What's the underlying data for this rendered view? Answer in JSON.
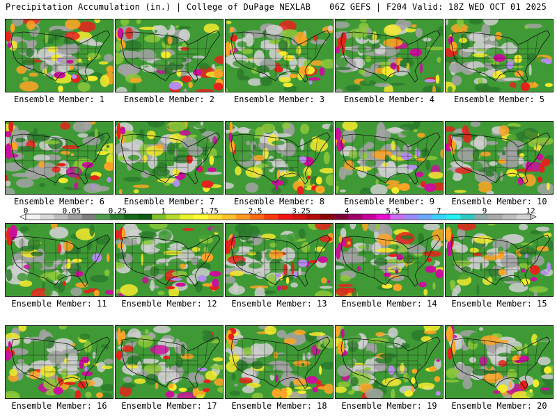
{
  "header": {
    "left": "Precipitation Accumulation (in.) | College of DuPage NEXLAB",
    "right": "06Z GEFS | F204 Valid: 18Z WED OCT 01 2025"
  },
  "members": [
    {
      "label": "Ensemble Member: 1"
    },
    {
      "label": "Ensemble Member: 2"
    },
    {
      "label": "Ensemble Member: 3"
    },
    {
      "label": "Ensemble Member: 4"
    },
    {
      "label": "Ensemble Member: 5"
    },
    {
      "label": "Ensemble Member: 6"
    },
    {
      "label": "Ensemble Member: 7"
    },
    {
      "label": "Ensemble Member: 8"
    },
    {
      "label": "Ensemble Member: 9"
    },
    {
      "label": "Ensemble Member: 10"
    },
    {
      "label": "Ensemble Member: 11"
    },
    {
      "label": "Ensemble Member: 12"
    },
    {
      "label": "Ensemble Member: 13"
    },
    {
      "label": "Ensemble Member: 14"
    },
    {
      "label": "Ensemble Member: 15"
    },
    {
      "label": "Ensemble Member: 16"
    },
    {
      "label": "Ensemble Member: 17"
    },
    {
      "label": "Ensemble Member: 18"
    },
    {
      "label": "Ensemble Member: 19"
    },
    {
      "label": "Ensemble Member: 20"
    }
  ],
  "colorbar": {
    "ticks": [
      "0",
      "0.05",
      "0.25",
      "1",
      "1.75",
      "2.5",
      "3.25",
      "4",
      "5.5",
      "7",
      "9",
      "12"
    ],
    "colors": [
      "#f2f2f2",
      "#d8d8d8",
      "#bdbdbd",
      "#9e9e9e",
      "#7d7d7d",
      "#4f9a4f",
      "#2f7d2f",
      "#16681a",
      "#0f5a14",
      "#7fbf2a",
      "#b6d92a",
      "#e7f32a",
      "#ffff33",
      "#ffe033",
      "#ffc02a",
      "#ff9a1f",
      "#ff6a14",
      "#ff3a0a",
      "#f01414",
      "#d20f0f",
      "#b40a0a",
      "#8c0505",
      "#7a0038",
      "#a00068",
      "#c8009a",
      "#e80ed0",
      "#c86cf0",
      "#9a86ff",
      "#6aa8ff",
      "#3ad2ff",
      "#24f0f0",
      "#2fc8c0",
      "#8ea8a8",
      "#a8a8a8",
      "#bcbcbc",
      "#d0d0d0"
    ]
  },
  "map_palette": {
    "light_gray": "#cfcfcf",
    "gray": "#a3a3a3",
    "dark_green": "#2c7a2c",
    "green": "#3f9a35",
    "light_green": "#8cc83a",
    "yellow": "#f4ea2e",
    "orange": "#ffa424",
    "red": "#e4231c",
    "magenta": "#c8109a",
    "lilac": "#b48cf0",
    "cyan": "#3fd6f0",
    "outline": "#111111"
  }
}
